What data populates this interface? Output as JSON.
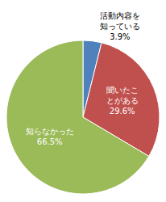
{
  "chart_data": {
    "type": "pie",
    "categories": [
      "活動内容を知っている",
      "聞いたことがある",
      "知らなかった"
    ],
    "values": [
      3.9,
      29.6,
      66.5
    ],
    "value_labels": [
      "3.9%",
      "29.6%",
      "66.5%"
    ],
    "colors": [
      "#4f81bd",
      "#c0504d",
      "#9bbb59"
    ],
    "data_labels": true
  }
}
